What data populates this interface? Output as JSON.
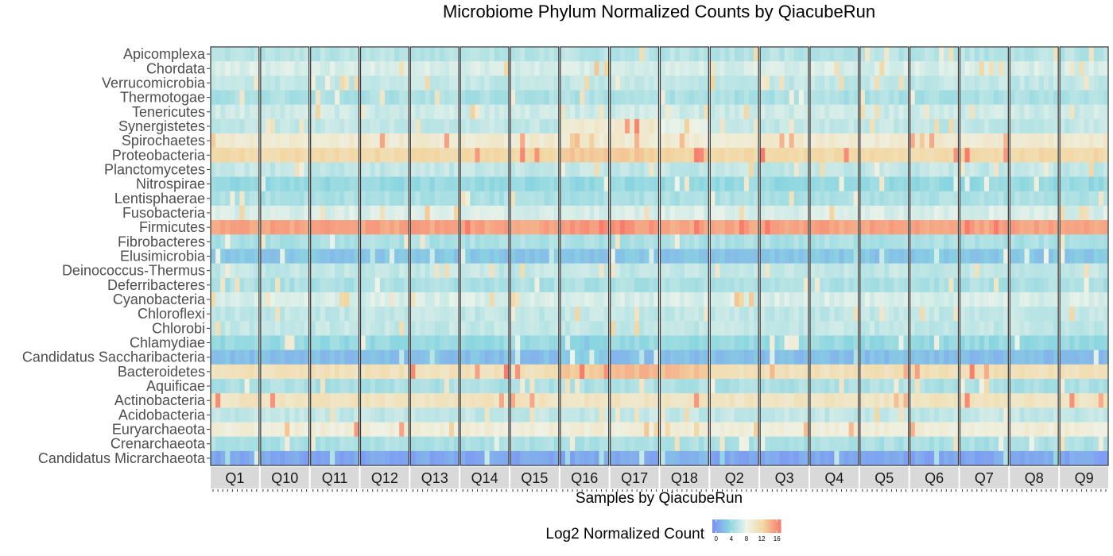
{
  "chart_data": {
    "type": "heatmap",
    "title": "Microbiome Phylum Normalized Counts by QiacubeRun",
    "xlabel": "Samples by QiacubeRun",
    "ylabel": "",
    "facets": [
      "Q1",
      "Q10",
      "Q11",
      "Q12",
      "Q13",
      "Q14",
      "Q15",
      "Q16",
      "Q17",
      "Q18",
      "Q2",
      "Q3",
      "Q4",
      "Q5",
      "Q6",
      "Q7",
      "Q8",
      "Q9"
    ],
    "phyla": [
      "Apicomplexa",
      "Chordata",
      "Verrucomicrobia",
      "Thermotogae",
      "Tenericutes",
      "Synergistetes",
      "Spirochaetes",
      "Proteobacteria",
      "Planctomycetes",
      "Nitrospirae",
      "Lentisphaerae",
      "Fusobacteria",
      "Firmicutes",
      "Fibrobacteres",
      "Elusimicrobia",
      "Deinococcus-Thermus",
      "Deferribacteres",
      "Cyanobacteria",
      "Chloroflexi",
      "Chlorobi",
      "Chlamydiae",
      "Candidatus Saccharibacteria",
      "Bacteroidetes",
      "Aquificae",
      "Actinobacteria",
      "Acidobacteria",
      "Euryarchaeota",
      "Crenarchaeota",
      "Candidatus Micrarchaeota"
    ],
    "samples_per_facet": 10,
    "approx_log2_count_by_phylum": [
      5.5,
      7,
      6,
      5,
      6.5,
      6,
      9.5,
      12,
      6,
      4,
      5,
      7,
      15,
      5,
      2.5,
      6,
      5,
      7,
      6,
      6,
      4,
      2,
      11,
      5,
      10.5,
      6,
      9,
      5,
      0.5
    ],
    "approx_log2_count_by_phylum_facet": {
      "Q16": {
        "Synergistetes": 9.5,
        "Proteobacteria": 13,
        "Bacteroidetes": 13,
        "Firmicutes": 15.5,
        "Candidatus Saccharibacteria": 3,
        "Chlamydiae": 3
      },
      "Q17": {
        "Synergistetes": 10,
        "Proteobacteria": 13,
        "Bacteroidetes": 14,
        "Firmicutes": 15.5
      },
      "Q18": {
        "Synergistetes": 8,
        "Proteobacteria": 12.5,
        "Bacteroidetes": 13.5,
        "Candidatus Micrarchaeota": 1.5
      }
    },
    "legend": {
      "title": "Log2 Normalized Count",
      "ticks": [
        0,
        4,
        8,
        12,
        16
      ],
      "range": [
        -1,
        17
      ],
      "colors": [
        "#7b8ff5",
        "#8bd6e0",
        "#eef4ea",
        "#f2d6a1",
        "#f87c6d"
      ],
      "placement": "bottom"
    }
  }
}
